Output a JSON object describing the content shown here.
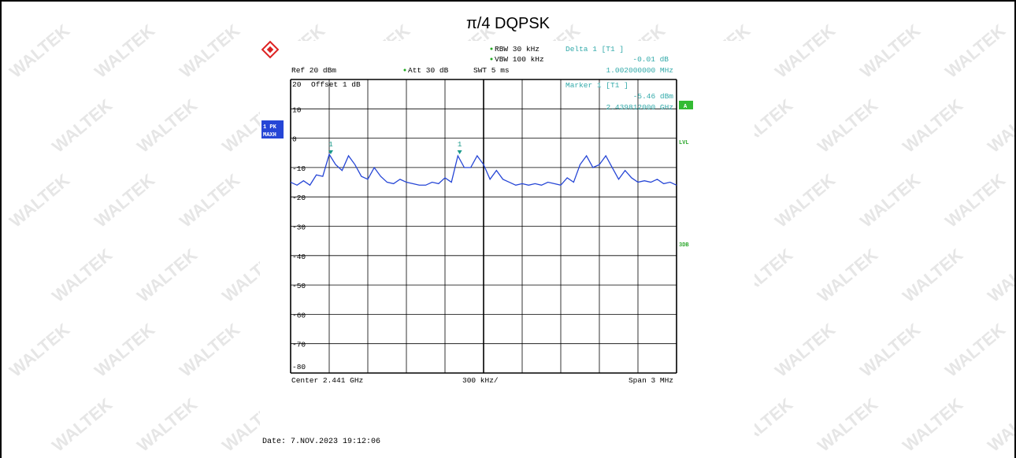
{
  "chart_data": {
    "type": "line",
    "title": "π/4 DQPSK",
    "watermark": "WALTEK",
    "header": {
      "rbw": "RBW 30 kHz",
      "vbw": "VBW 100 kHz",
      "swt": "SWT 5 ms",
      "ref": "Ref 20 dBm",
      "att": "Att 30 dB",
      "offset": "Offset 1 dB",
      "delta_title": "Delta 1 [T1 ]",
      "delta_level": "-0.01 dB",
      "delta_freq": "1.002000000 MHz",
      "marker_title": "Marker 1 [T1 ]",
      "marker_level": "-5.46 dBm",
      "marker_freq": "2.439812000 GHz"
    },
    "side": {
      "trace": "1 PK",
      "mode": "MAXH",
      "a": "A",
      "lvl": "LVL",
      "db3": "3DB"
    },
    "footer": {
      "center": "Center 2.441 GHz",
      "div": "300 kHz/",
      "span": "Span 3 MHz",
      "date": "Date: 7.NOV.2023  19:12:06"
    },
    "xlim": [
      2.4395,
      2.4425
    ],
    "xticks": [
      2.4395,
      2.4398,
      2.4401,
      2.4404,
      2.4407,
      2.441,
      2.4413,
      2.4416,
      2.4419,
      2.4422,
      2.4425
    ],
    "ylim": [
      -80,
      20
    ],
    "yticks": [
      20,
      10,
      0,
      -10,
      -20,
      -30,
      -40,
      -50,
      -60,
      -70,
      -80
    ],
    "grid": true,
    "markers": [
      {
        "label": "1",
        "x": 2.439812,
        "y": -5.46
      },
      {
        "label": "1",
        "x": 2.440814,
        "y": -5.47
      }
    ],
    "series": [
      {
        "name": "1 PK MAXH",
        "color": "#2646d6",
        "x": [
          2.4395,
          2.43955,
          2.4396,
          2.43965,
          2.4397,
          2.43975,
          2.4398,
          2.43985,
          2.4399,
          2.43995,
          2.44,
          2.44005,
          2.4401,
          2.44015,
          2.4402,
          2.44025,
          2.4403,
          2.44035,
          2.4404,
          2.44045,
          2.4405,
          2.44055,
          2.4406,
          2.44065,
          2.4407,
          2.44075,
          2.4408,
          2.44085,
          2.4409,
          2.44095,
          2.441,
          2.44105,
          2.4411,
          2.44115,
          2.4412,
          2.44125,
          2.4413,
          2.44135,
          2.4414,
          2.44145,
          2.4415,
          2.44155,
          2.4416,
          2.44165,
          2.4417,
          2.44175,
          2.4418,
          2.44185,
          2.4419,
          2.44195,
          2.442,
          2.44205,
          2.4421,
          2.44215,
          2.4422,
          2.44225,
          2.4423,
          2.44235,
          2.4424,
          2.44245,
          2.4425
        ],
        "values": [
          -15,
          -16,
          -14.5,
          -16,
          -12.5,
          -13,
          -5.5,
          -9,
          -11,
          -6,
          -9,
          -13,
          -14,
          -10,
          -13,
          -15,
          -15.5,
          -14,
          -15,
          -15.5,
          -16,
          -16,
          -15,
          -15.5,
          -13.5,
          -15,
          -6,
          -10,
          -10,
          -6,
          -9,
          -14,
          -11,
          -14,
          -15,
          -16,
          -15.5,
          -16,
          -15.5,
          -16,
          -15,
          -15.5,
          -16,
          -13.5,
          -15,
          -9,
          -6,
          -10,
          -9,
          -6,
          -10,
          -14,
          -11,
          -13.5,
          -15,
          -14.5,
          -15,
          -14,
          -15.5,
          -15,
          -16
        ]
      }
    ]
  }
}
